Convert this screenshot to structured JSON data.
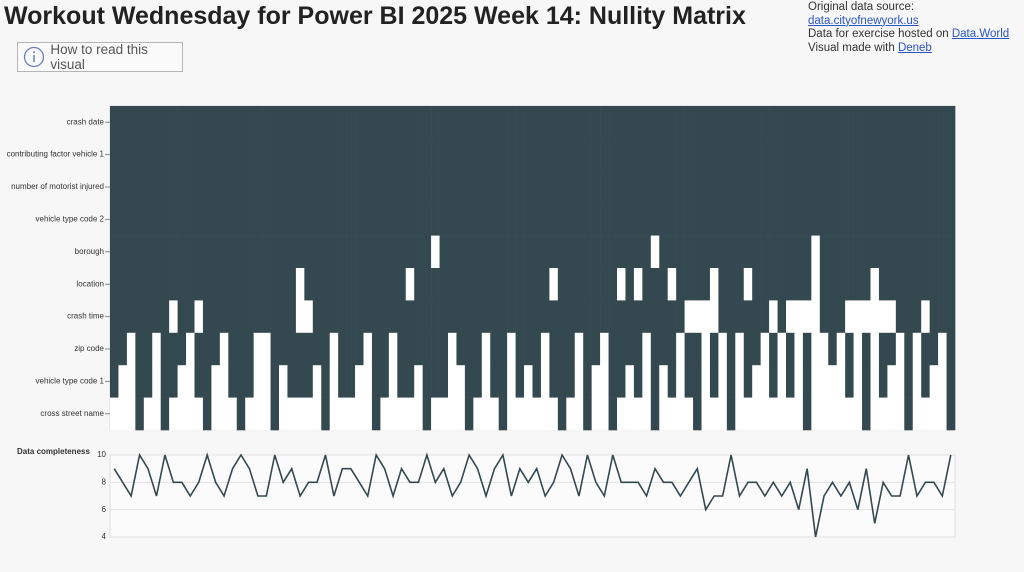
{
  "header": {
    "title": "Workout Wednesday for Power BI 2025 Week 14: Nullity Matrix",
    "source_label": "Original data source:",
    "source_link": "data.cityofnewyork.us",
    "hosted_label": "Data for exercise hosted on",
    "hosted_link": "Data.World",
    "made_label": "Visual made with",
    "made_link": "Deneb",
    "button": "How to read this visual"
  },
  "chart_data": [
    {
      "type": "matrix",
      "color": "#34484f",
      "missing_color": "#ffffff",
      "rows": [
        {
          "name": "crash date",
          "values": [
            1,
            1,
            1,
            1,
            1,
            1,
            1,
            1,
            1,
            1,
            1,
            1,
            1,
            1,
            1,
            1,
            1,
            1,
            1,
            1,
            1,
            1,
            1,
            1,
            1,
            1,
            1,
            1,
            1,
            1,
            1,
            1,
            1,
            1,
            1,
            1,
            1,
            1,
            1,
            1,
            1,
            1,
            1,
            1,
            1,
            1,
            1,
            1,
            1,
            1,
            1,
            1,
            1,
            1,
            1,
            1,
            1,
            1,
            1,
            1,
            1,
            1,
            1,
            1,
            1,
            1,
            1,
            1,
            1,
            1,
            1,
            1,
            1,
            1,
            1,
            1,
            1,
            1,
            1,
            1,
            1,
            1,
            1,
            1,
            1,
            1,
            1,
            1,
            1,
            1,
            1,
            1,
            1,
            1,
            1,
            1,
            1,
            1,
            1,
            1
          ]
        },
        {
          "name": "contributing factor vehicle 1",
          "values": [
            1,
            1,
            1,
            1,
            1,
            1,
            1,
            1,
            1,
            1,
            1,
            1,
            1,
            1,
            1,
            1,
            1,
            1,
            1,
            1,
            1,
            1,
            1,
            1,
            1,
            1,
            1,
            1,
            1,
            1,
            1,
            1,
            1,
            1,
            1,
            1,
            1,
            1,
            1,
            1,
            1,
            1,
            1,
            1,
            1,
            1,
            1,
            1,
            1,
            1,
            1,
            1,
            1,
            1,
            1,
            1,
            1,
            1,
            1,
            1,
            1,
            1,
            1,
            1,
            1,
            1,
            1,
            1,
            1,
            1,
            1,
            1,
            1,
            1,
            1,
            1,
            1,
            1,
            1,
            1,
            1,
            1,
            1,
            1,
            1,
            1,
            1,
            1,
            1,
            1,
            1,
            1,
            1,
            1,
            1,
            1,
            1,
            1,
            1,
            1
          ]
        },
        {
          "name": "number of motorist injured",
          "values": [
            1,
            1,
            1,
            1,
            1,
            1,
            1,
            1,
            1,
            1,
            1,
            1,
            1,
            1,
            1,
            1,
            1,
            1,
            1,
            1,
            1,
            1,
            1,
            1,
            1,
            1,
            1,
            1,
            1,
            1,
            1,
            1,
            1,
            1,
            1,
            1,
            1,
            1,
            1,
            1,
            1,
            1,
            1,
            1,
            1,
            1,
            1,
            1,
            1,
            1,
            1,
            1,
            1,
            1,
            1,
            1,
            1,
            1,
            1,
            1,
            1,
            1,
            1,
            1,
            1,
            1,
            1,
            1,
            1,
            1,
            1,
            1,
            1,
            1,
            1,
            1,
            1,
            1,
            1,
            1,
            1,
            1,
            1,
            1,
            1,
            1,
            1,
            1,
            1,
            1,
            1,
            1,
            1,
            1,
            1,
            1,
            1,
            1,
            1,
            1
          ]
        },
        {
          "name": "vehicle type code 2",
          "values": [
            1,
            1,
            1,
            1,
            1,
            1,
            1,
            1,
            1,
            1,
            1,
            1,
            1,
            1,
            1,
            1,
            1,
            1,
            1,
            1,
            1,
            1,
            1,
            1,
            1,
            1,
            1,
            1,
            1,
            1,
            1,
            1,
            1,
            1,
            1,
            1,
            1,
            1,
            1,
            1,
            1,
            1,
            1,
            1,
            1,
            1,
            1,
            1,
            1,
            1,
            1,
            1,
            1,
            1,
            1,
            1,
            1,
            1,
            1,
            1,
            1,
            1,
            1,
            1,
            1,
            1,
            1,
            1,
            1,
            1,
            1,
            1,
            1,
            1,
            1,
            1,
            1,
            1,
            1,
            1,
            1,
            1,
            1,
            1,
            1,
            1,
            1,
            1,
            1,
            1,
            1,
            1,
            1,
            1,
            1,
            1,
            1,
            1,
            1,
            1
          ]
        },
        {
          "name": "borough",
          "values": [
            1,
            1,
            1,
            1,
            1,
            1,
            1,
            1,
            1,
            1,
            1,
            1,
            1,
            1,
            1,
            1,
            1,
            1,
            1,
            1,
            1,
            1,
            1,
            1,
            1,
            1,
            1,
            1,
            1,
            1,
            1,
            1,
            1,
            1,
            1,
            1,
            1,
            1,
            0,
            1,
            1,
            1,
            1,
            1,
            1,
            1,
            1,
            1,
            1,
            1,
            1,
            1,
            1,
            1,
            1,
            1,
            1,
            1,
            1,
            1,
            1,
            1,
            1,
            1,
            0,
            1,
            1,
            1,
            1,
            1,
            1,
            1,
            1,
            1,
            1,
            1,
            1,
            1,
            1,
            1,
            1,
            1,
            1,
            0,
            1,
            1,
            1,
            1,
            1,
            1,
            1,
            1,
            1,
            1,
            1,
            1,
            1,
            1,
            1,
            1
          ]
        },
        {
          "name": "location",
          "values": [
            1,
            1,
            1,
            1,
            1,
            1,
            1,
            1,
            1,
            1,
            1,
            1,
            1,
            1,
            1,
            1,
            1,
            1,
            1,
            1,
            1,
            1,
            0,
            1,
            1,
            1,
            1,
            1,
            1,
            1,
            1,
            1,
            1,
            1,
            1,
            0,
            1,
            1,
            1,
            1,
            1,
            1,
            1,
            1,
            1,
            1,
            1,
            1,
            1,
            1,
            1,
            1,
            0,
            1,
            1,
            1,
            1,
            1,
            1,
            1,
            0,
            1,
            0,
            1,
            1,
            1,
            0,
            1,
            1,
            1,
            1,
            0,
            1,
            1,
            1,
            0,
            1,
            1,
            1,
            1,
            1,
            1,
            1,
            0,
            1,
            1,
            1,
            1,
            1,
            1,
            0,
            1,
            1,
            1,
            1,
            1,
            1,
            1,
            1,
            1
          ]
        },
        {
          "name": "crash time",
          "values": [
            1,
            1,
            1,
            1,
            1,
            1,
            1,
            0,
            1,
            1,
            0,
            1,
            1,
            1,
            1,
            1,
            1,
            1,
            1,
            1,
            1,
            1,
            0,
            0,
            1,
            1,
            1,
            1,
            1,
            1,
            1,
            1,
            1,
            1,
            1,
            1,
            1,
            1,
            1,
            1,
            1,
            1,
            1,
            1,
            1,
            1,
            1,
            1,
            1,
            1,
            1,
            1,
            1,
            1,
            1,
            1,
            1,
            1,
            1,
            1,
            1,
            1,
            1,
            1,
            1,
            1,
            1,
            1,
            0,
            0,
            0,
            0,
            1,
            1,
            1,
            1,
            1,
            1,
            0,
            1,
            0,
            0,
            0,
            0,
            1,
            1,
            1,
            0,
            0,
            0,
            0,
            0,
            0,
            1,
            1,
            1,
            0,
            1,
            1,
            1
          ]
        },
        {
          "name": "zip code",
          "values": [
            1,
            1,
            0,
            1,
            1,
            0,
            1,
            1,
            1,
            0,
            1,
            1,
            1,
            0,
            1,
            1,
            1,
            0,
            0,
            1,
            1,
            1,
            1,
            1,
            1,
            1,
            0,
            1,
            1,
            1,
            0,
            1,
            1,
            0,
            1,
            1,
            1,
            1,
            1,
            1,
            0,
            1,
            1,
            1,
            0,
            1,
            1,
            0,
            1,
            1,
            1,
            0,
            1,
            1,
            1,
            0,
            1,
            1,
            0,
            1,
            1,
            1,
            1,
            0,
            1,
            1,
            1,
            0,
            1,
            1,
            0,
            1,
            0,
            1,
            0,
            1,
            1,
            0,
            1,
            0,
            1,
            0,
            1,
            0,
            0,
            1,
            0,
            1,
            0,
            1,
            0,
            1,
            1,
            0,
            1,
            0,
            1,
            1,
            0,
            1
          ]
        },
        {
          "name": "vehicle type code 1",
          "values": [
            1,
            0,
            0,
            1,
            1,
            0,
            1,
            1,
            0,
            0,
            1,
            1,
            0,
            0,
            1,
            1,
            1,
            0,
            0,
            1,
            0,
            1,
            1,
            1,
            0,
            1,
            0,
            1,
            1,
            0,
            0,
            1,
            1,
            0,
            1,
            1,
            0,
            1,
            1,
            1,
            0,
            0,
            1,
            1,
            0,
            1,
            1,
            0,
            1,
            0,
            1,
            0,
            1,
            1,
            1,
            0,
            1,
            0,
            0,
            1,
            1,
            0,
            1,
            0,
            1,
            0,
            1,
            0,
            1,
            1,
            0,
            1,
            0,
            1,
            0,
            1,
            0,
            0,
            1,
            0,
            1,
            0,
            1,
            0,
            0,
            0,
            0,
            1,
            0,
            1,
            0,
            1,
            0,
            0,
            1,
            0,
            1,
            0,
            0,
            1
          ]
        },
        {
          "name": "cross street name",
          "values": [
            0,
            0,
            0,
            1,
            0,
            0,
            1,
            0,
            0,
            0,
            0,
            1,
            0,
            0,
            0,
            1,
            0,
            0,
            0,
            1,
            0,
            0,
            0,
            0,
            0,
            1,
            0,
            0,
            0,
            0,
            0,
            1,
            0,
            0,
            0,
            0,
            0,
            1,
            0,
            0,
            0,
            0,
            1,
            0,
            0,
            0,
            1,
            0,
            0,
            0,
            0,
            0,
            0,
            1,
            0,
            0,
            1,
            0,
            0,
            1,
            0,
            0,
            0,
            0,
            1,
            0,
            0,
            0,
            0,
            1,
            0,
            0,
            0,
            1,
            0,
            0,
            0,
            0,
            0,
            0,
            0,
            0,
            1,
            0,
            0,
            0,
            0,
            0,
            0,
            1,
            0,
            0,
            0,
            0,
            1,
            0,
            0,
            0,
            0,
            1
          ]
        }
      ]
    },
    {
      "type": "line",
      "title": "Data completeness",
      "color": "#34484f",
      "values": [
        9,
        8,
        7,
        10,
        9,
        7,
        10,
        8,
        8,
        7,
        8,
        10,
        8,
        7,
        9,
        10,
        9,
        7,
        7,
        10,
        8,
        9,
        7,
        8,
        8,
        10,
        7,
        9,
        9,
        8,
        7,
        10,
        9,
        7,
        9,
        8,
        8,
        10,
        8,
        9,
        7,
        8,
        10,
        9,
        7,
        9,
        10,
        7,
        9,
        8,
        9,
        7,
        8,
        10,
        9,
        7,
        10,
        8,
        7,
        10,
        8,
        8,
        8,
        7,
        9,
        8,
        8,
        7,
        8,
        9,
        6,
        7,
        7,
        10,
        7,
        8,
        8,
        7,
        8,
        7,
        8,
        6,
        9,
        4,
        7,
        8,
        7,
        8,
        6,
        9,
        5,
        8,
        7,
        7,
        10,
        7,
        8,
        8,
        7,
        10
      ],
      "ylim": [
        4,
        10
      ],
      "yticks": [
        4,
        6,
        8,
        10
      ],
      "grid": true
    }
  ]
}
